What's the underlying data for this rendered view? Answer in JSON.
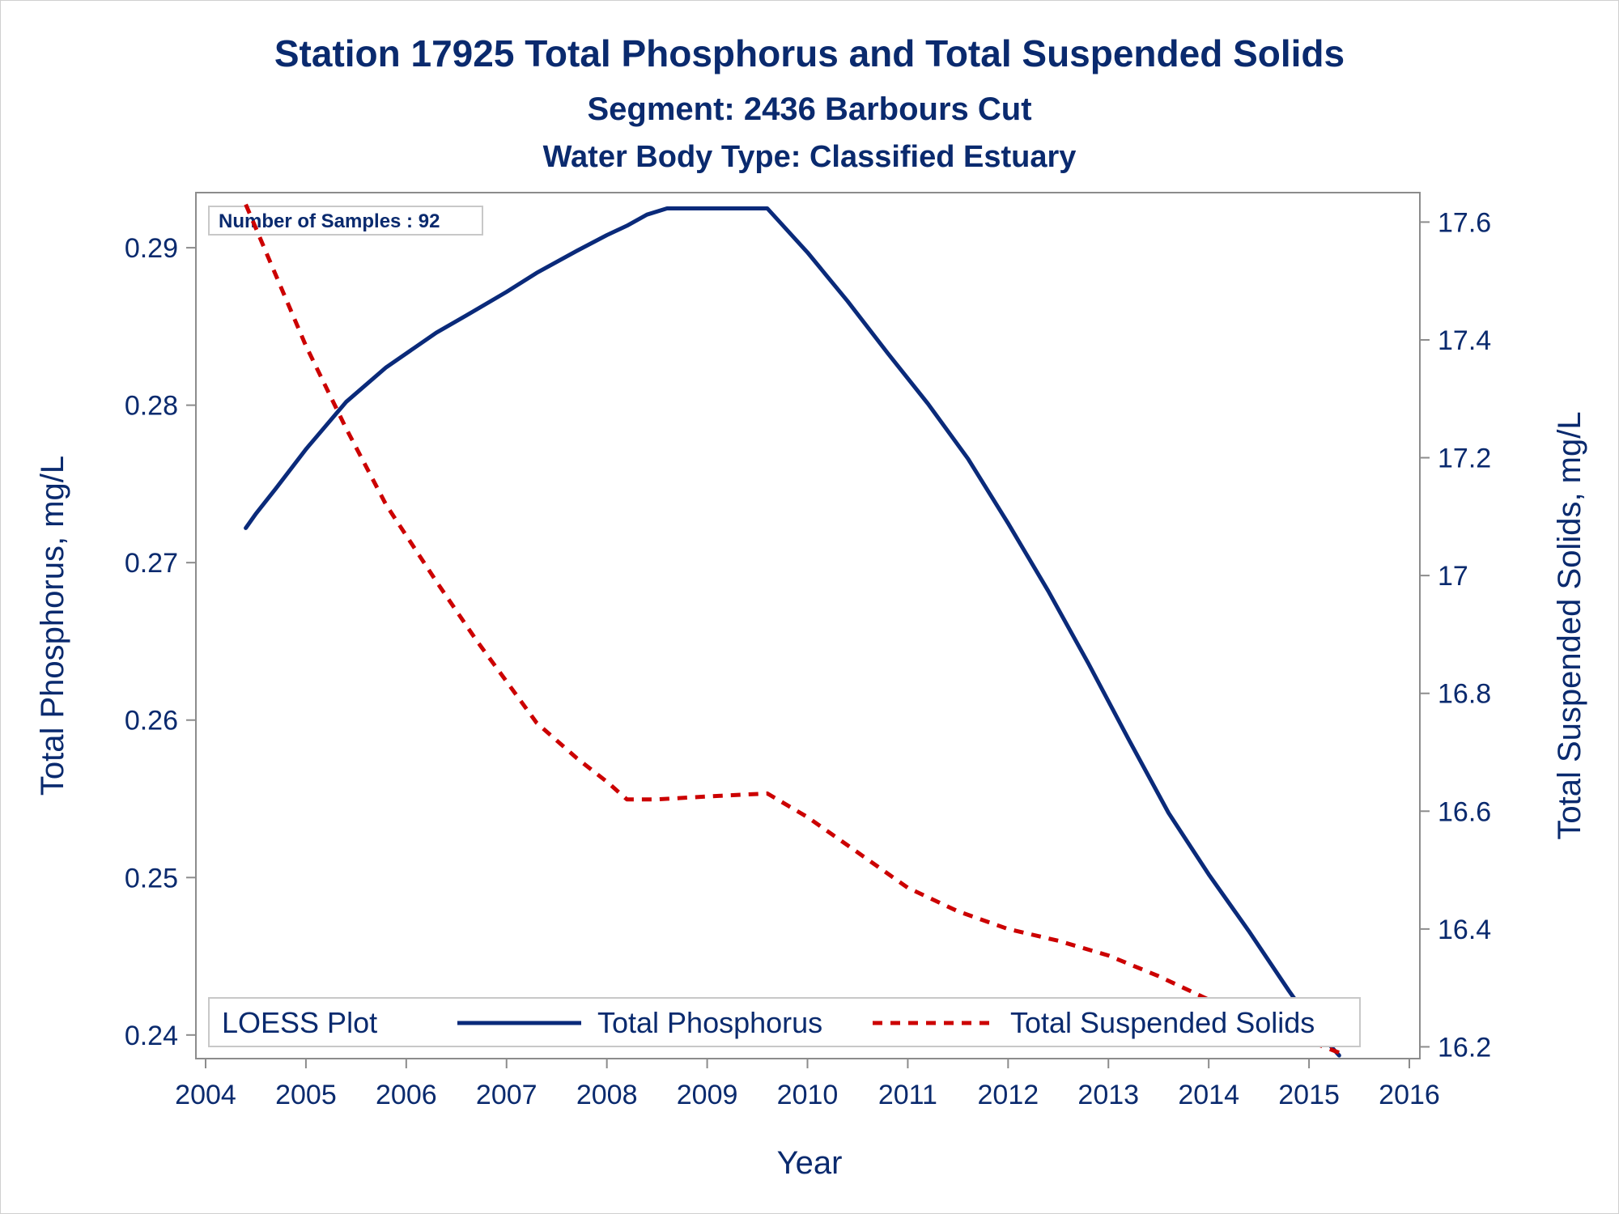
{
  "titles": {
    "line1": "Station 17925  Total Phosphorus and Total Suspended Solids",
    "line2": "Segment: 2436  Barbours Cut",
    "line3": "Water Body Type: Classified Estuary"
  },
  "inset_note": "Number of Samples : 92",
  "legend": {
    "title": "LOESS Plot",
    "entries": [
      "Total Phosphorus",
      "Total Suspended Solids"
    ]
  },
  "colors": {
    "text": "#0a2a6e",
    "phosphorus": "#0a2a7a",
    "tss": "#cc0000",
    "axis": "#8c8c8c"
  },
  "chart_data": {
    "type": "line",
    "title": "Station 17925  Total Phosphorus and Total Suspended Solids",
    "xlabel": "Year",
    "ylabel_left": "Total Phosphorus, mg/L",
    "ylabel_right": "Total Suspended Solids, mg/L",
    "xlim": [
      2004,
      2016
    ],
    "ylim_left": [
      0.2385,
      0.2935
    ],
    "ylim_right": [
      16.18,
      17.65
    ],
    "x_ticks": [
      "2004",
      "2005",
      "2006",
      "2007",
      "2008",
      "2009",
      "2010",
      "2011",
      "2012",
      "2013",
      "2014",
      "2015",
      "2016"
    ],
    "y_left_ticks": [
      "0.24",
      "0.25",
      "0.26",
      "0.27",
      "0.28",
      "0.29"
    ],
    "y_right_ticks": [
      "16.2",
      "16.4",
      "16.6",
      "16.8",
      "17",
      "17.2",
      "17.4",
      "17.6"
    ],
    "legend_position": "bottom-inside",
    "series": [
      {
        "name": "Total Phosphorus",
        "axis": "left",
        "style": "solid",
        "x": [
          2004.4,
          2004.5,
          2004.7,
          2005.0,
          2005.4,
          2005.8,
          2006.3,
          2006.6,
          2007.0,
          2007.3,
          2007.7,
          2008.0,
          2008.2,
          2008.4,
          2008.6,
          2009.0,
          2009.6,
          2010.0,
          2010.4,
          2010.8,
          2011.2,
          2011.6,
          2012.0,
          2012.4,
          2012.8,
          2013.2,
          2013.6,
          2014.0,
          2014.4,
          2014.8,
          2015.1,
          2015.3
        ],
        "y": [
          0.2722,
          0.2731,
          0.2747,
          0.2772,
          0.2802,
          0.2824,
          0.2846,
          0.2857,
          0.2872,
          0.2884,
          0.2898,
          0.2908,
          0.2914,
          0.2921,
          0.2925,
          0.2925,
          0.2925,
          0.2897,
          0.2866,
          0.2833,
          0.2801,
          0.2766,
          0.2725,
          0.2682,
          0.2636,
          0.2588,
          0.2541,
          0.2502,
          0.2466,
          0.2428,
          0.2401,
          0.2387
        ]
      },
      {
        "name": "Total Suspended Solids",
        "axis": "right",
        "style": "dashed",
        "x": [
          2004.4,
          2004.7,
          2005.0,
          2005.4,
          2005.8,
          2006.3,
          2006.7,
          2007.0,
          2007.3,
          2007.7,
          2008.0,
          2008.2,
          2008.5,
          2009.0,
          2009.6,
          2010.0,
          2010.5,
          2011.0,
          2011.5,
          2012.0,
          2012.5,
          2013.0,
          2013.5,
          2014.0,
          2014.5,
          2015.0,
          2015.3
        ],
        "y": [
          17.63,
          17.51,
          17.39,
          17.25,
          17.12,
          16.99,
          16.89,
          16.82,
          16.75,
          16.69,
          16.65,
          16.62,
          16.62,
          16.625,
          16.63,
          16.59,
          16.53,
          16.47,
          16.43,
          16.4,
          16.38,
          16.355,
          16.32,
          16.28,
          16.24,
          16.21,
          16.19
        ]
      }
    ]
  }
}
